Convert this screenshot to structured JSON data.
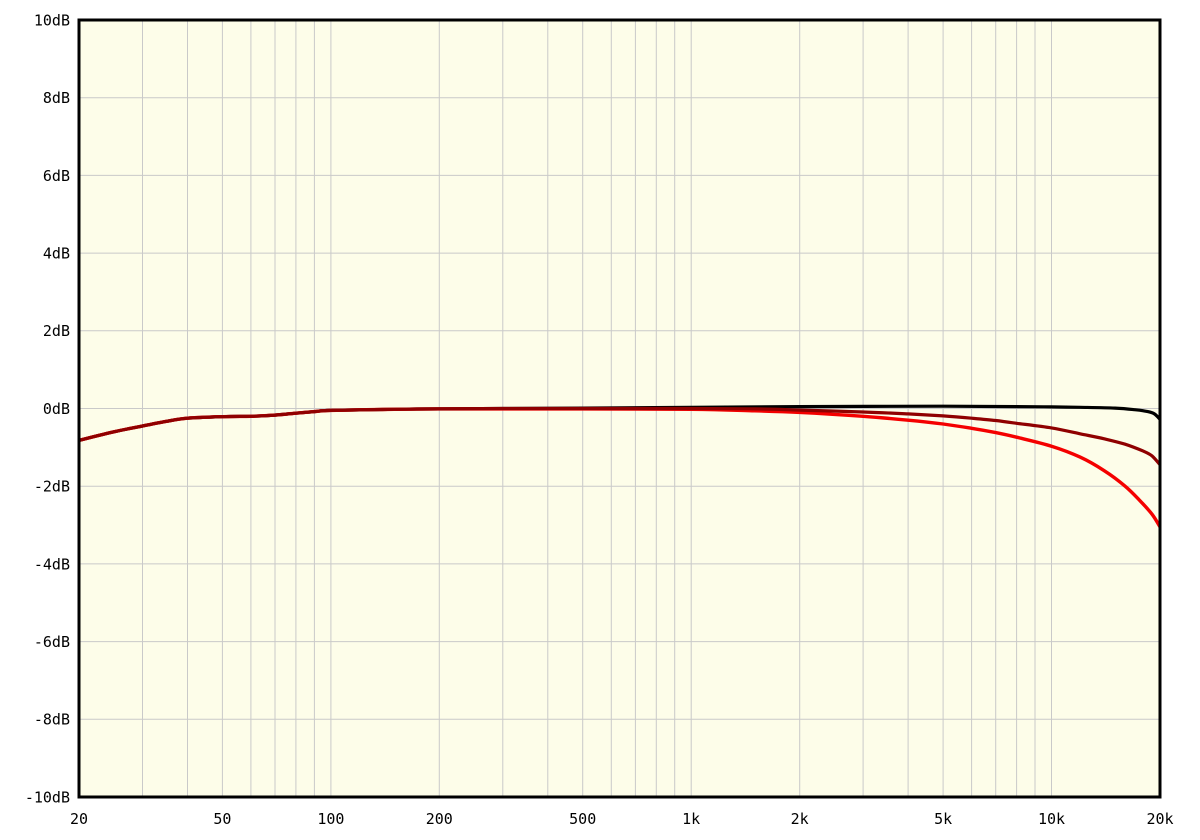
{
  "chart_data": {
    "type": "line",
    "title": "",
    "xlabel": "",
    "ylabel": "",
    "x_scale": "log",
    "x_range": [
      20,
      20000
    ],
    "y_range": [
      -10,
      10
    ],
    "grid": true,
    "legend": "none",
    "colors": {
      "page_background": "#ffffff",
      "plot_background": "#fdfde9",
      "grid": "#c9c9c9",
      "border": "#000000"
    },
    "x_ticks": [
      {
        "f": 20,
        "label": "20"
      },
      {
        "f": 50,
        "label": "50"
      },
      {
        "f": 100,
        "label": "100"
      },
      {
        "f": 200,
        "label": "200"
      },
      {
        "f": 500,
        "label": "500"
      },
      {
        "f": 1000,
        "label": "1k"
      },
      {
        "f": 2000,
        "label": "2k"
      },
      {
        "f": 5000,
        "label": "5k"
      },
      {
        "f": 10000,
        "label": "10k"
      },
      {
        "f": 20000,
        "label": "20k"
      }
    ],
    "x_gridlines": [
      30,
      40,
      50,
      60,
      70,
      80,
      90,
      100,
      200,
      300,
      400,
      500,
      600,
      700,
      800,
      900,
      1000,
      2000,
      3000,
      4000,
      5000,
      6000,
      7000,
      8000,
      9000,
      10000
    ],
    "y_ticks": [
      {
        "v": 10,
        "label": "10dB"
      },
      {
        "v": 8,
        "label": "8dB"
      },
      {
        "v": 6,
        "label": "6dB"
      },
      {
        "v": 4,
        "label": "4dB"
      },
      {
        "v": 2,
        "label": "2dB"
      },
      {
        "v": 0,
        "label": "0dB"
      },
      {
        "v": -2,
        "label": "-2dB"
      },
      {
        "v": -4,
        "label": "-4dB"
      },
      {
        "v": -6,
        "label": "-6dB"
      },
      {
        "v": -8,
        "label": "-8dB"
      },
      {
        "v": -10,
        "label": "-10dB"
      }
    ],
    "y_gridlines": [
      -8,
      -6,
      -4,
      -2,
      0,
      2,
      4,
      6,
      8
    ],
    "series": [
      {
        "name": "black-curve",
        "color": "#000000",
        "width": 3.2,
        "points": [
          [
            20,
            -0.82
          ],
          [
            25,
            -0.6
          ],
          [
            30,
            -0.45
          ],
          [
            35,
            -0.33
          ],
          [
            40,
            -0.25
          ],
          [
            50,
            -0.21
          ],
          [
            60,
            -0.2
          ],
          [
            70,
            -0.17
          ],
          [
            80,
            -0.12
          ],
          [
            90,
            -0.08
          ],
          [
            100,
            -0.05
          ],
          [
            150,
            -0.02
          ],
          [
            200,
            -0.01
          ],
          [
            300,
            0
          ],
          [
            500,
            0.01
          ],
          [
            1000,
            0.03
          ],
          [
            2000,
            0.05
          ],
          [
            5000,
            0.06
          ],
          [
            8000,
            0.05
          ],
          [
            10000,
            0.04
          ],
          [
            12000,
            0.03
          ],
          [
            15000,
            0.01
          ],
          [
            17000,
            -0.03
          ],
          [
            18500,
            -0.08
          ],
          [
            19300,
            -0.14
          ],
          [
            20000,
            -0.28
          ]
        ]
      },
      {
        "name": "bright-red-curve",
        "color": "#f40000",
        "width": 3.4,
        "points": [
          [
            20,
            -0.82
          ],
          [
            25,
            -0.6
          ],
          [
            30,
            -0.45
          ],
          [
            35,
            -0.33
          ],
          [
            40,
            -0.25
          ],
          [
            50,
            -0.21
          ],
          [
            60,
            -0.2
          ],
          [
            70,
            -0.17
          ],
          [
            80,
            -0.12
          ],
          [
            90,
            -0.08
          ],
          [
            100,
            -0.05
          ],
          [
            150,
            -0.02
          ],
          [
            200,
            -0.01
          ],
          [
            300,
            -0.01
          ],
          [
            500,
            -0.01
          ],
          [
            1000,
            -0.02
          ],
          [
            1500,
            -0.06
          ],
          [
            2000,
            -0.1
          ],
          [
            3000,
            -0.2
          ],
          [
            4000,
            -0.3
          ],
          [
            5000,
            -0.4
          ],
          [
            6000,
            -0.51
          ],
          [
            7000,
            -0.62
          ],
          [
            8000,
            -0.74
          ],
          [
            10000,
            -0.97
          ],
          [
            12000,
            -1.25
          ],
          [
            14000,
            -1.6
          ],
          [
            16000,
            -2.0
          ],
          [
            17500,
            -2.35
          ],
          [
            19000,
            -2.72
          ],
          [
            20000,
            -3.05
          ]
        ]
      },
      {
        "name": "dark-red-curve",
        "color": "#8f0000",
        "width": 3.2,
        "points": [
          [
            20,
            -0.82
          ],
          [
            25,
            -0.6
          ],
          [
            30,
            -0.45
          ],
          [
            35,
            -0.33
          ],
          [
            40,
            -0.25
          ],
          [
            50,
            -0.21
          ],
          [
            60,
            -0.2
          ],
          [
            70,
            -0.17
          ],
          [
            80,
            -0.12
          ],
          [
            90,
            -0.08
          ],
          [
            100,
            -0.05
          ],
          [
            150,
            -0.02
          ],
          [
            200,
            -0.01
          ],
          [
            300,
            0
          ],
          [
            500,
            0
          ],
          [
            1000,
            0
          ],
          [
            1500,
            -0.01
          ],
          [
            2000,
            -0.04
          ],
          [
            3000,
            -0.09
          ],
          [
            4000,
            -0.14
          ],
          [
            5000,
            -0.19
          ],
          [
            6000,
            -0.25
          ],
          [
            7000,
            -0.31
          ],
          [
            8000,
            -0.38
          ],
          [
            10000,
            -0.5
          ],
          [
            12000,
            -0.65
          ],
          [
            14000,
            -0.78
          ],
          [
            16000,
            -0.92
          ],
          [
            18000,
            -1.1
          ],
          [
            19000,
            -1.22
          ],
          [
            20000,
            -1.45
          ]
        ]
      }
    ]
  }
}
